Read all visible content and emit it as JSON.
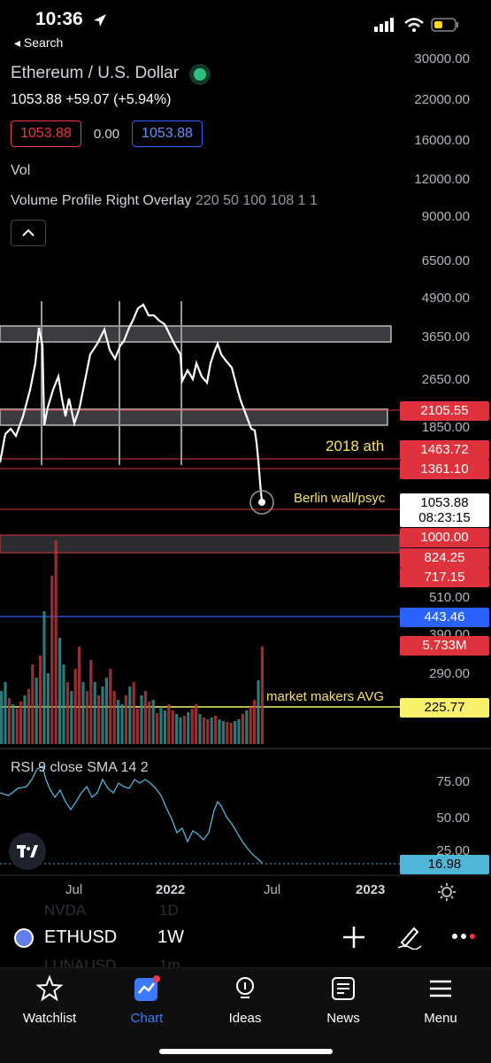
{
  "status": {
    "time": "10:36",
    "back_label": "Search"
  },
  "header": {
    "symbol_title": "Ethereum / U.S. Dollar",
    "price_line": "1053.88  +59.07 (+5.94%)",
    "bid": "1053.88",
    "spread": "0.00",
    "ask": "1053.88",
    "vol_label": "Vol",
    "vp_name": "Volume Profile Right Overlay",
    "vp_params": "220 50 100 108 1 1"
  },
  "price_axis": [
    "30000.00",
    "22000.00",
    "16000.00",
    "12000.00",
    "9000.00",
    "6500.00",
    "4900.00",
    "3650.00",
    "2650.00",
    "1850.00",
    "510.00",
    "390.00",
    "290.00"
  ],
  "price_tags": {
    "t2105": "2105.55",
    "t1463": "1463.72",
    "t1361": "1361.10",
    "current_price": "1053.88",
    "countdown": "08:23:15",
    "t1000": "1000.00",
    "t824": "824.25",
    "t717": "717.15",
    "t443": "443.46",
    "vol_value": "5.733M",
    "t225": "225.77",
    "rsi_value": "16.98"
  },
  "annotations": {
    "ath": "2018 ath",
    "berlin": "Berlin wall/psyc",
    "mm": "market makers AVG"
  },
  "rsi": {
    "label": "RSI 9 close SMA 14 2",
    "axis": [
      "75.00",
      "50.00",
      "25.00"
    ]
  },
  "time_axis": {
    "jul1": "Jul",
    "y2022": "2022",
    "jul2": "Jul",
    "y2023": "2023"
  },
  "ghost_rows": {
    "above_sym": "NVDA",
    "above_tf": "1D",
    "below_sym": "LUNAUSD",
    "below_tf": "1m"
  },
  "symbol_bar": {
    "symbol": "ETHUSD",
    "timeframe": "1W"
  },
  "tabs": [
    {
      "label": "Watchlist"
    },
    {
      "label": "Chart"
    },
    {
      "label": "Ideas"
    },
    {
      "label": "News"
    },
    {
      "label": "Menu"
    }
  ],
  "colors": {
    "accent": "#3b7bff",
    "red": "#e0323c",
    "blue": "#2962ff",
    "yellow": "#f9f06b",
    "cyan": "#4fb6d8",
    "rsi": "#4fb6d8"
  }
}
